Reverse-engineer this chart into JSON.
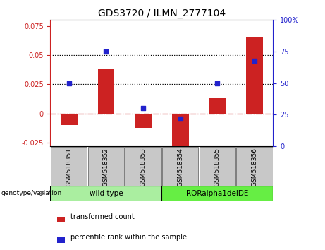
{
  "title": "GDS3720 / ILMN_2777104",
  "categories": [
    "GSM518351",
    "GSM518352",
    "GSM518353",
    "GSM518354",
    "GSM518355",
    "GSM518356"
  ],
  "bar_values": [
    -0.01,
    0.038,
    -0.012,
    -0.028,
    0.013,
    0.065
  ],
  "dot_percentile": [
    50,
    75,
    30,
    22,
    50,
    68
  ],
  "bar_color": "#cc2222",
  "dot_color": "#2222cc",
  "ylim_left": [
    -0.028,
    0.08
  ],
  "ylim_right": [
    0,
    100
  ],
  "yticks_left": [
    -0.025,
    0,
    0.025,
    0.05,
    0.075
  ],
  "yticks_right": [
    0,
    25,
    50,
    75,
    100
  ],
  "hlines": [
    0.025,
    0.05
  ],
  "groups": [
    {
      "label": "wild type",
      "color": "#aaeea0",
      "n": 3
    },
    {
      "label": "RORalpha1delDE",
      "color": "#66ee44",
      "n": 3
    }
  ],
  "group_label": "genotype/variation",
  "legend_bar": "transformed count",
  "legend_dot": "percentile rank within the sample",
  "tick_fontsize": 7,
  "title_fontsize": 10,
  "tick_color_gray": "#cccccc",
  "tick_box_edgecolor": "#888888"
}
